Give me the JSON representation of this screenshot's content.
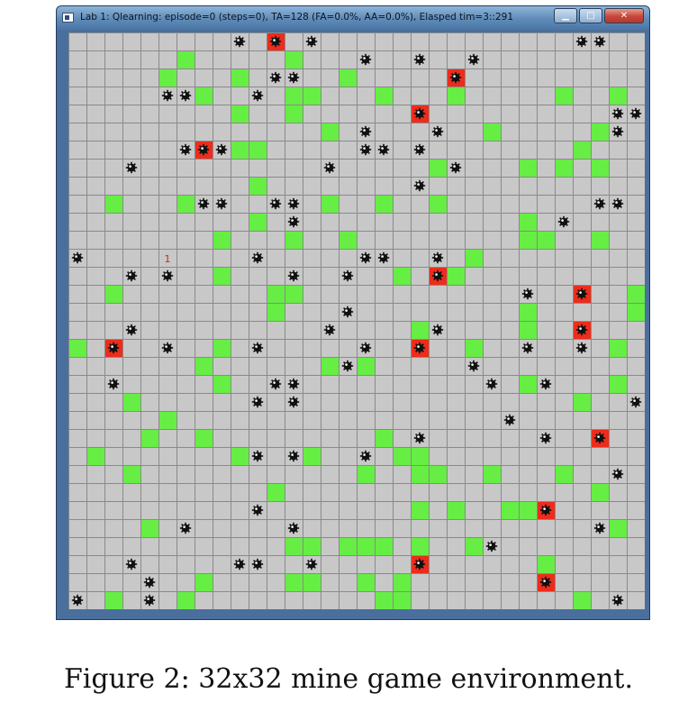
{
  "window": {
    "title": "Lab 1: Qlearning: episode=0 (steps=0), TA=128 (FA=0.0%, AA=0.0%), Elasped tim=3::291",
    "controls": {
      "minimize": "▁",
      "maximize": "□",
      "close": "✕"
    }
  },
  "board": {
    "rows": 32,
    "cols": 32,
    "colors": {
      "background": "#c8c8c8",
      "grid": "#8a8a8a",
      "green": "#66ee44",
      "red": "#ee2c1c",
      "mine": "#111111"
    },
    "green_cells": [
      [
        1,
        6
      ],
      [
        1,
        12
      ],
      [
        2,
        5
      ],
      [
        2,
        9
      ],
      [
        2,
        15
      ],
      [
        2,
        21
      ],
      [
        3,
        7
      ],
      [
        3,
        12
      ],
      [
        3,
        13
      ],
      [
        3,
        17
      ],
      [
        3,
        21
      ],
      [
        3,
        27
      ],
      [
        3,
        30
      ],
      [
        4,
        9
      ],
      [
        4,
        12
      ],
      [
        5,
        14
      ],
      [
        5,
        23
      ],
      [
        5,
        29
      ],
      [
        6,
        9
      ],
      [
        6,
        10
      ],
      [
        6,
        28
      ],
      [
        7,
        20
      ],
      [
        7,
        25
      ],
      [
        7,
        27
      ],
      [
        7,
        29
      ],
      [
        8,
        10
      ],
      [
        9,
        2
      ],
      [
        9,
        6
      ],
      [
        9,
        14
      ],
      [
        9,
        17
      ],
      [
        9,
        20
      ],
      [
        10,
        10
      ],
      [
        10,
        25
      ],
      [
        11,
        8
      ],
      [
        11,
        12
      ],
      [
        11,
        15
      ],
      [
        11,
        25
      ],
      [
        11,
        26
      ],
      [
        11,
        29
      ],
      [
        12,
        22
      ],
      [
        13,
        8
      ],
      [
        13,
        18
      ],
      [
        13,
        21
      ],
      [
        14,
        2
      ],
      [
        14,
        11
      ],
      [
        14,
        12
      ],
      [
        14,
        31
      ],
      [
        15,
        11
      ],
      [
        15,
        25
      ],
      [
        15,
        31
      ],
      [
        16,
        19
      ],
      [
        16,
        25
      ],
      [
        17,
        0
      ],
      [
        17,
        8
      ],
      [
        17,
        22
      ],
      [
        17,
        30
      ],
      [
        18,
        7
      ],
      [
        18,
        14
      ],
      [
        18,
        16
      ],
      [
        19,
        8
      ],
      [
        19,
        25
      ],
      [
        19,
        30
      ],
      [
        20,
        3
      ],
      [
        20,
        28
      ],
      [
        21,
        5
      ],
      [
        22,
        4
      ],
      [
        22,
        7
      ],
      [
        22,
        17
      ],
      [
        23,
        1
      ],
      [
        23,
        9
      ],
      [
        23,
        13
      ],
      [
        23,
        18
      ],
      [
        23,
        19
      ],
      [
        24,
        3
      ],
      [
        24,
        16
      ],
      [
        24,
        19
      ],
      [
        24,
        20
      ],
      [
        24,
        23
      ],
      [
        24,
        27
      ],
      [
        25,
        11
      ],
      [
        25,
        29
      ],
      [
        26,
        19
      ],
      [
        26,
        21
      ],
      [
        26,
        24
      ],
      [
        26,
        25
      ],
      [
        27,
        4
      ],
      [
        27,
        30
      ],
      [
        28,
        12
      ],
      [
        28,
        13
      ],
      [
        28,
        15
      ],
      [
        28,
        16
      ],
      [
        28,
        17
      ],
      [
        28,
        19
      ],
      [
        28,
        22
      ],
      [
        29,
        26
      ],
      [
        30,
        7
      ],
      [
        30,
        12
      ],
      [
        30,
        13
      ],
      [
        30,
        16
      ],
      [
        30,
        18
      ],
      [
        31,
        2
      ],
      [
        31,
        6
      ],
      [
        31,
        17
      ],
      [
        31,
        18
      ],
      [
        31,
        28
      ]
    ],
    "red_cells": [
      [
        0,
        11
      ],
      [
        2,
        21
      ],
      [
        4,
        19
      ],
      [
        6,
        7
      ],
      [
        13,
        20
      ],
      [
        14,
        28
      ],
      [
        16,
        28
      ],
      [
        17,
        2
      ],
      [
        17,
        19
      ],
      [
        22,
        29
      ],
      [
        26,
        26
      ],
      [
        29,
        19
      ],
      [
        30,
        26
      ]
    ],
    "mines": [
      [
        0,
        9
      ],
      [
        0,
        11
      ],
      [
        0,
        13
      ],
      [
        0,
        28
      ],
      [
        0,
        29
      ],
      [
        1,
        16
      ],
      [
        1,
        19
      ],
      [
        1,
        22
      ],
      [
        2,
        11
      ],
      [
        2,
        12
      ],
      [
        2,
        21
      ],
      [
        3,
        5
      ],
      [
        3,
        6
      ],
      [
        3,
        10
      ],
      [
        4,
        19
      ],
      [
        4,
        30
      ],
      [
        4,
        31
      ],
      [
        5,
        16
      ],
      [
        5,
        20
      ],
      [
        5,
        30
      ],
      [
        6,
        6
      ],
      [
        6,
        7
      ],
      [
        6,
        8
      ],
      [
        6,
        16
      ],
      [
        6,
        17
      ],
      [
        6,
        19
      ],
      [
        7,
        3
      ],
      [
        7,
        14
      ],
      [
        7,
        21
      ],
      [
        8,
        19
      ],
      [
        9,
        7
      ],
      [
        9,
        8
      ],
      [
        9,
        11
      ],
      [
        9,
        12
      ],
      [
        9,
        29
      ],
      [
        9,
        30
      ],
      [
        10,
        12
      ],
      [
        10,
        27
      ],
      [
        12,
        0
      ],
      [
        12,
        10
      ],
      [
        12,
        16
      ],
      [
        12,
        17
      ],
      [
        12,
        20
      ],
      [
        13,
        3
      ],
      [
        13,
        5
      ],
      [
        13,
        12
      ],
      [
        13,
        15
      ],
      [
        13,
        20
      ],
      [
        14,
        25
      ],
      [
        14,
        28
      ],
      [
        15,
        15
      ],
      [
        16,
        3
      ],
      [
        16,
        14
      ],
      [
        16,
        20
      ],
      [
        16,
        28
      ],
      [
        17,
        2
      ],
      [
        17,
        5
      ],
      [
        17,
        10
      ],
      [
        17,
        16
      ],
      [
        17,
        19
      ],
      [
        17,
        25
      ],
      [
        17,
        28
      ],
      [
        18,
        15
      ],
      [
        18,
        22
      ],
      [
        19,
        2
      ],
      [
        19,
        11
      ],
      [
        19,
        12
      ],
      [
        19,
        23
      ],
      [
        19,
        26
      ],
      [
        20,
        10
      ],
      [
        20,
        12
      ],
      [
        20,
        31
      ],
      [
        21,
        24
      ],
      [
        22,
        19
      ],
      [
        22,
        26
      ],
      [
        22,
        29
      ],
      [
        23,
        10
      ],
      [
        23,
        12
      ],
      [
        23,
        16
      ],
      [
        24,
        30
      ],
      [
        26,
        10
      ],
      [
        26,
        26
      ],
      [
        27,
        6
      ],
      [
        27,
        12
      ],
      [
        27,
        29
      ],
      [
        28,
        23
      ],
      [
        29,
        3
      ],
      [
        29,
        9
      ],
      [
        29,
        10
      ],
      [
        29,
        13
      ],
      [
        29,
        19
      ],
      [
        30,
        4
      ],
      [
        30,
        26
      ],
      [
        31,
        0
      ],
      [
        31,
        4
      ],
      [
        31,
        30
      ]
    ],
    "agent": {
      "row": 12,
      "col": 5,
      "label": "1",
      "color": "#cc2222"
    }
  },
  "caption": "Figure 2: 32x32 mine game environment."
}
